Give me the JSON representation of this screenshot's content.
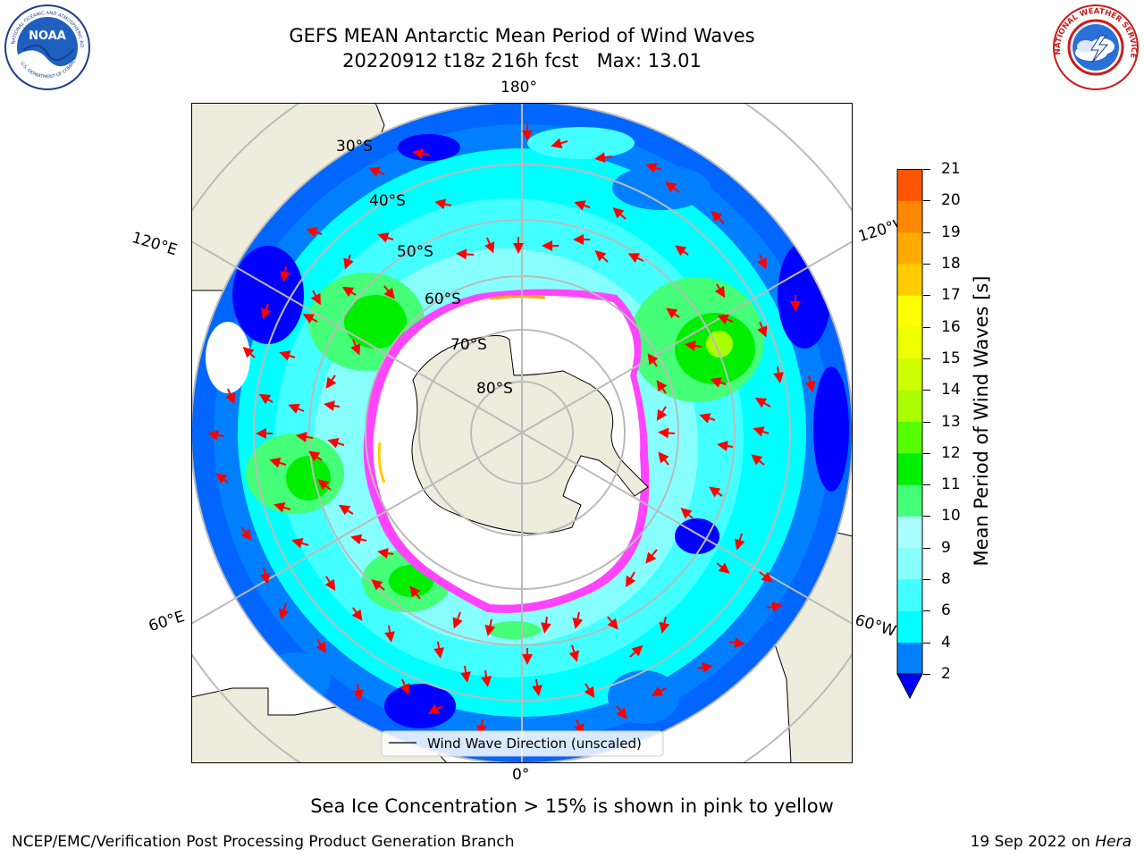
{
  "header": {
    "title_line1": "GEFS MEAN Antarctic Mean Period of Wind Waves",
    "title_line2": "20220912 t18z 216h fcst   Max: 13.01"
  },
  "logos": {
    "noaa_text": "NOAA",
    "noaa_ring_text": "NATIONAL OCEANIC AND ATMOSPHERIC ADMINISTRATION",
    "noaa_bottom_text": "U.S. DEPARTMENT OF COMMERCE",
    "nws_ring_text": "NATIONAL WEATHER SERVICE"
  },
  "map": {
    "projection": "south-polar-stereographic",
    "lon_labels": {
      "top": "180°",
      "left_upper": "120°E",
      "right_upper": "120°W",
      "left_lower": "60°E",
      "right_lower": "60°W",
      "bottom": "0°"
    },
    "lat_labels": [
      "30°S",
      "40°S",
      "50°S",
      "60°S",
      "70°S",
      "80°S"
    ],
    "legend_label": "Wind Wave Direction (unscaled)",
    "colors": {
      "land": "#eeecdc",
      "ice_edge": "#ff44ff",
      "ice_fill": "#ffffff",
      "grid": "#bbbbbb"
    }
  },
  "colorbar": {
    "title": "Mean Period of Wind Waves [s]",
    "ticks": [
      "2",
      "4",
      "6",
      "8",
      "9",
      "10",
      "11",
      "12",
      "13",
      "14",
      "15",
      "16",
      "17",
      "18",
      "19",
      "20",
      "21"
    ],
    "colors": [
      "#0080ff",
      "#00ffff",
      "#44ffff",
      "#88ffff",
      "#aaffff",
      "#44ff77",
      "#00ee00",
      "#55ff00",
      "#aaff00",
      "#ccff00",
      "#eeff00",
      "#ffff00",
      "#ffcc00",
      "#ffaa00",
      "#ff8800",
      "#ff5500",
      "#ff2200",
      "#ff0000"
    ],
    "under_color": "#0000ff"
  },
  "notes": {
    "sea_ice": "Sea Ice Concentration > 15% is shown in pink to yellow"
  },
  "footer": {
    "producer": "NCEP/EMC/Verification Post Processing Product Generation Branch",
    "date_prefix": "19 Sep 2022 on ",
    "machine": "Hera"
  }
}
